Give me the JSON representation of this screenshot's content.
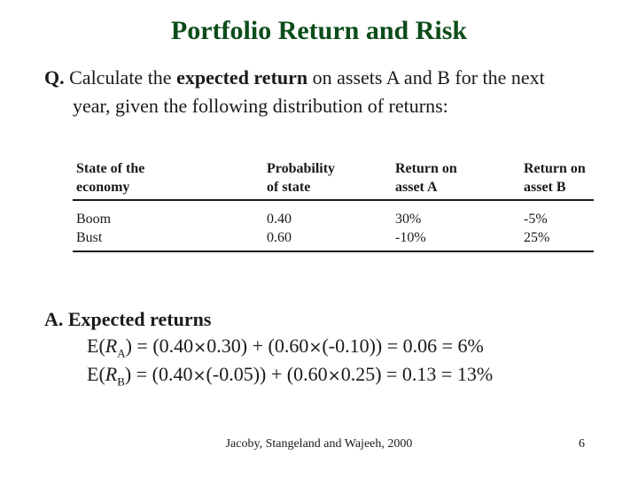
{
  "slide": {
    "title": "Portfolio Return and Risk",
    "question": {
      "prefix": "Q.",
      "part1": "Calculate the ",
      "emphasis": "expected return",
      "part2": " on assets A and B for the next",
      "line2": "year, given the following distribution of returns:"
    },
    "table": {
      "headers": [
        [
          "State of the",
          "economy"
        ],
        [
          "Probability",
          "of state"
        ],
        [
          "Return on",
          "asset A"
        ],
        [
          "Return on",
          "asset B"
        ]
      ],
      "columns": [
        [
          "Boom",
          "Bust"
        ],
        [
          "0.40",
          "0.60"
        ],
        [
          "30%",
          "-10%"
        ],
        [
          "-5%",
          "25%"
        ]
      ]
    },
    "answer": {
      "heading": "A. Expected returns",
      "eq1": {
        "lhs": "E(",
        "var": "R",
        "sub": "A",
        "t1": ") = (0.40",
        "t2": "0.30) + (0.60",
        "t3": "(-0.10)) = 0.06 = 6%"
      },
      "eq2": {
        "lhs": "E(",
        "var": "R",
        "sub": "B",
        "t1": ") = (0.40",
        "t2": "(-0.05)) + (0.60",
        "t3": "0.25) = 0.13 = 13%"
      },
      "times_symbol": "×"
    },
    "footer": "Jacoby, Stangeland and Wajeeh, 2000",
    "page_number": "6"
  }
}
